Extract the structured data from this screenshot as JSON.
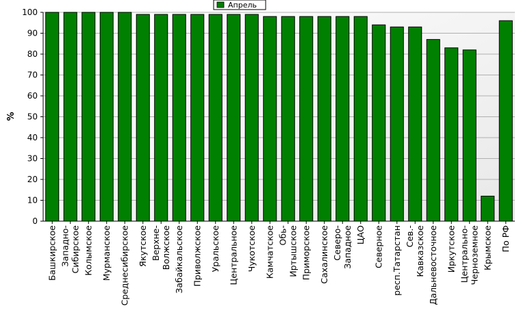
{
  "chart_data": {
    "type": "bar",
    "ylabel": "%",
    "ylim": [
      0,
      100
    ],
    "yticks": [
      0,
      10,
      20,
      30,
      40,
      50,
      60,
      70,
      80,
      90,
      100
    ],
    "grid": true,
    "legend": "top-center",
    "categories": [
      "Башкирское",
      "Западно-Сибирское",
      "Колымское",
      "Мурманское",
      "Среднесибирское",
      "Якутское",
      "Верхне-Волжское",
      "Забайкальское",
      "Приволжское",
      "Уральское",
      "Центральное",
      "Чукотское",
      "Камчатское",
      "Обь-Иртышское",
      "Приморское",
      "Сахалинское",
      "Северо-Западное",
      "ЦАО",
      "Северное",
      "респ.Татарстан",
      "Сев.-Кавказское",
      "Дальневосточное",
      "Иркутское",
      "Центрально-Черноземное",
      "Крымское",
      "По РФ"
    ],
    "category_lines": [
      [
        "Башкирское"
      ],
      [
        "Западно-",
        "Сибирское"
      ],
      [
        "Колымское"
      ],
      [
        "Мурманское"
      ],
      [
        "Среднесибирское"
      ],
      [
        "Якутское"
      ],
      [
        "Верхне-",
        "Волжское"
      ],
      [
        "Забайкальское"
      ],
      [
        "Приволжское"
      ],
      [
        "Уральское"
      ],
      [
        "Центральное"
      ],
      [
        "Чукотское"
      ],
      [
        "Камчатское"
      ],
      [
        "Обь-",
        "Иртышское"
      ],
      [
        "Приморское"
      ],
      [
        "Сахалинское"
      ],
      [
        "Северо-",
        "Западное"
      ],
      [
        "ЦАО"
      ],
      [
        "Северное"
      ],
      [
        "респ.Татарстан"
      ],
      [
        "Сев.-",
        "Кавказское"
      ],
      [
        "Дальневосточное"
      ],
      [
        "Иркутское"
      ],
      [
        "Центрально-",
        "Черноземное"
      ],
      [
        "Крымское"
      ],
      [
        "По РФ"
      ]
    ],
    "series": [
      {
        "name": "Апрель",
        "color": "#008000",
        "values": [
          100,
          100,
          100,
          100,
          100,
          99,
          99,
          99,
          99,
          99,
          99,
          99,
          98,
          98,
          98,
          98,
          98,
          98,
          94,
          93,
          93,
          87,
          83,
          82,
          12,
          96
        ]
      }
    ]
  },
  "colors": {
    "bar": "#008000",
    "bar_edge": "#000000",
    "plot_bg_start": "#ffffff",
    "plot_bg_end": "#e8e8e8",
    "grid": "#b0b0b0"
  }
}
